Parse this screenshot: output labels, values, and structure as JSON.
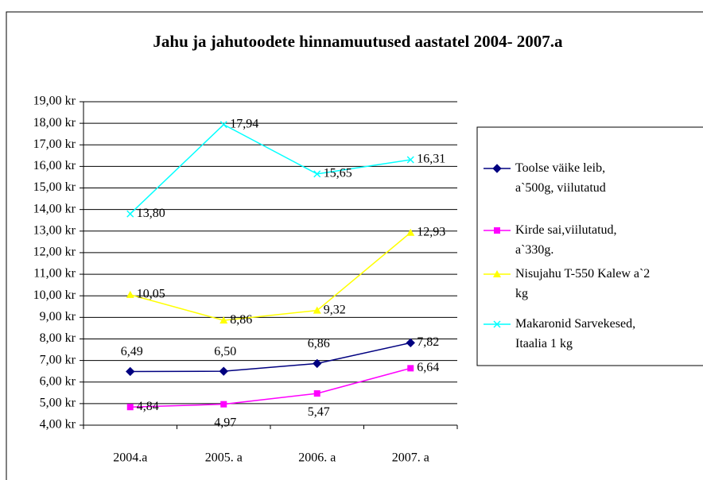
{
  "chart_data": {
    "type": "line",
    "title": "Jahu ja jahutoodete hinnamuutused aastatel 2004- 2007.a",
    "categories": [
      "2004.a",
      "2005. a",
      "2006. a",
      "2007. a"
    ],
    "series": [
      {
        "name": "Toolse väike leib, a`500g, viilutatud",
        "color": "#000080",
        "marker": "diamond",
        "values": [
          6.49,
          6.5,
          6.86,
          7.82
        ],
        "value_labels": [
          "6,49",
          "6,50",
          "6,86",
          "7,82"
        ]
      },
      {
        "name": "Kirde sai,viilutatud, a`330g.",
        "color": "#ff00ff",
        "marker": "square",
        "values": [
          4.84,
          4.97,
          5.47,
          6.64
        ],
        "value_labels": [
          "4,84",
          "4,97",
          "5,47",
          "6,64"
        ]
      },
      {
        "name": "Nisujahu T-550 Kalew a`2 kg",
        "color": "#ffff00",
        "marker": "triangle",
        "values": [
          10.05,
          8.86,
          9.32,
          12.93
        ],
        "value_labels": [
          "10,05",
          "8,86",
          "9,32",
          "12,93"
        ]
      },
      {
        "name": "Makaronid Sarvekesed, Itaalia 1 kg",
        "color": "#00ffff",
        "marker": "x",
        "values": [
          13.8,
          17.94,
          15.65,
          16.31
        ],
        "value_labels": [
          "13,80",
          "17,94",
          "15,65",
          "16,31"
        ]
      }
    ],
    "ylim": [
      4,
      19
    ],
    "yticks": [
      {
        "value": 4,
        "label": "4,00 kr"
      },
      {
        "value": 5,
        "label": "5,00 kr"
      },
      {
        "value": 6,
        "label": "6,00 kr"
      },
      {
        "value": 7,
        "label": "7,00 kr"
      },
      {
        "value": 8,
        "label": "8,00 kr"
      },
      {
        "value": 9,
        "label": "9,00 kr"
      },
      {
        "value": 10,
        "label": "10,00 kr"
      },
      {
        "value": 11,
        "label": "11,00 kr"
      },
      {
        "value": 12,
        "label": "12,00 kr"
      },
      {
        "value": 13,
        "label": "13,00 kr"
      },
      {
        "value": 14,
        "label": "14,00 kr"
      },
      {
        "value": 15,
        "label": "15,00 kr"
      },
      {
        "value": 16,
        "label": "16,00 kr"
      },
      {
        "value": 17,
        "label": "17,00 kr"
      },
      {
        "value": 18,
        "label": "18,00 kr"
      },
      {
        "value": 19,
        "label": "19,00 kr"
      }
    ],
    "grid": true,
    "legend": "right"
  }
}
